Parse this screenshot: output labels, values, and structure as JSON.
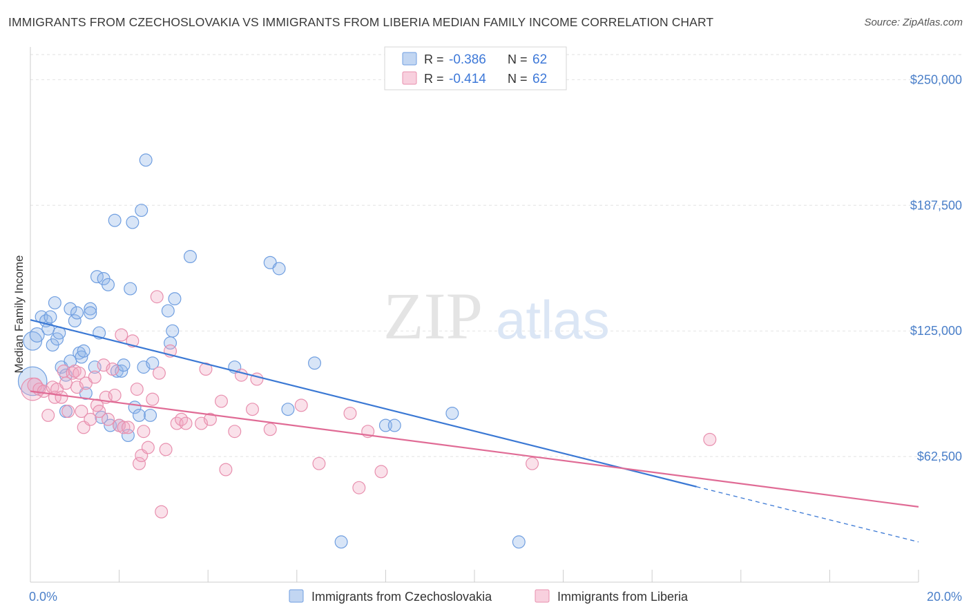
{
  "title": "IMMIGRANTS FROM CZECHOSLOVAKIA VS IMMIGRANTS FROM LIBERIA MEDIAN FAMILY INCOME CORRELATION CHART",
  "source": "Source: ZipAtlas.com",
  "watermark": {
    "zip": "ZIP",
    "atlas": "atlas"
  },
  "legend": {
    "rows": [
      {
        "r_label": "R =",
        "r_value": "-0.386",
        "n_label": "N =",
        "n_value": "62",
        "color": "#8fb4e8"
      },
      {
        "r_label": "R =",
        "r_value": "-0.414",
        "n_label": "N =",
        "n_value": "62",
        "color": "#f2a9c2"
      }
    ]
  },
  "chart_data": {
    "type": "scatter",
    "title": "IMMIGRANTS FROM CZECHOSLOVAKIA VS IMMIGRANTS FROM LIBERIA MEDIAN FAMILY INCOME CORRELATION CHART",
    "xlabel": "",
    "ylabel": "Median Family Income",
    "xlim": [
      0,
      20
    ],
    "ylim": [
      0,
      262500
    ],
    "x_tick_labels": [
      "0.0%",
      "20.0%"
    ],
    "y_ticks": [
      62500,
      125000,
      187500,
      250000
    ],
    "y_tick_labels": [
      "$62,500",
      "$125,000",
      "$187,500",
      "$250,000"
    ],
    "grid": true,
    "series": [
      {
        "name": "Immigrants from Czechoslovakia",
        "color": "#8fb4e8",
        "line_color": "#3a78d4",
        "trend": {
          "x0": 0,
          "y0": 130500,
          "x1": 15,
          "y1": 47500,
          "x_dash_end": 20,
          "y_dash_end": 20000
        },
        "points": [
          [
            0.05,
            100000,
            28
          ],
          [
            0.05,
            120000,
            18
          ],
          [
            0.15,
            123000,
            14
          ],
          [
            0.25,
            132000,
            12
          ],
          [
            0.35,
            130000,
            12
          ],
          [
            0.4,
            126000,
            12
          ],
          [
            0.45,
            132000,
            12
          ],
          [
            0.5,
            118000,
            12
          ],
          [
            0.55,
            139000,
            12
          ],
          [
            0.6,
            121000,
            12
          ],
          [
            0.65,
            124000,
            12
          ],
          [
            0.7,
            107000,
            12
          ],
          [
            0.8,
            103000,
            12
          ],
          [
            0.8,
            85000,
            12
          ],
          [
            0.9,
            136000,
            12
          ],
          [
            0.9,
            110000,
            12
          ],
          [
            1.0,
            130000,
            12
          ],
          [
            1.05,
            134000,
            12
          ],
          [
            1.1,
            114000,
            12
          ],
          [
            1.15,
            112000,
            12
          ],
          [
            1.2,
            115000,
            12
          ],
          [
            1.25,
            94000,
            12
          ],
          [
            1.35,
            136000,
            12
          ],
          [
            1.35,
            134000,
            12
          ],
          [
            1.45,
            107000,
            12
          ],
          [
            1.5,
            152000,
            12
          ],
          [
            1.55,
            124000,
            12
          ],
          [
            1.6,
            82000,
            12
          ],
          [
            1.65,
            151000,
            12
          ],
          [
            1.75,
            148000,
            12
          ],
          [
            1.8,
            78000,
            12
          ],
          [
            1.9,
            180000,
            12
          ],
          [
            1.95,
            105000,
            12
          ],
          [
            2.0,
            78000,
            12
          ],
          [
            2.05,
            105000,
            12
          ],
          [
            2.1,
            108000,
            12
          ],
          [
            2.2,
            73000,
            12
          ],
          [
            2.25,
            146000,
            12
          ],
          [
            2.3,
            179000,
            12
          ],
          [
            2.35,
            87000,
            12
          ],
          [
            2.45,
            83000,
            12
          ],
          [
            2.5,
            185000,
            12
          ],
          [
            2.55,
            107000,
            12
          ],
          [
            2.6,
            210000,
            12
          ],
          [
            2.7,
            83000,
            12
          ],
          [
            2.75,
            109000,
            12
          ],
          [
            3.1,
            135000,
            12
          ],
          [
            3.15,
            119000,
            12
          ],
          [
            3.2,
            125000,
            12
          ],
          [
            3.25,
            141000,
            12
          ],
          [
            3.6,
            162000,
            12
          ],
          [
            4.6,
            107000,
            12
          ],
          [
            5.4,
            159000,
            12
          ],
          [
            5.6,
            156000,
            12
          ],
          [
            5.8,
            86000,
            12
          ],
          [
            6.4,
            109000,
            12
          ],
          [
            7.0,
            20000,
            12
          ],
          [
            8.0,
            78000,
            12
          ],
          [
            8.2,
            78000,
            12
          ],
          [
            9.5,
            84000,
            12
          ],
          [
            11.0,
            20000,
            12
          ]
        ]
      },
      {
        "name": "Immigrants from Liberia",
        "color": "#f2a9c2",
        "line_color": "#e06b95",
        "trend": {
          "x0": 0,
          "y0": 95000,
          "x1": 20,
          "y1": 37500
        },
        "points": [
          [
            0.05,
            96000,
            22
          ],
          [
            0.1,
            98000,
            14
          ],
          [
            0.2,
            96000,
            12
          ],
          [
            0.3,
            95000,
            12
          ],
          [
            0.4,
            83000,
            12
          ],
          [
            0.5,
            97000,
            12
          ],
          [
            0.55,
            92000,
            12
          ],
          [
            0.6,
            96000,
            12
          ],
          [
            0.7,
            92000,
            12
          ],
          [
            0.75,
            105000,
            12
          ],
          [
            0.8,
            99000,
            12
          ],
          [
            0.85,
            85000,
            12
          ],
          [
            0.95,
            104000,
            12
          ],
          [
            1.0,
            105000,
            12
          ],
          [
            1.05,
            97000,
            12
          ],
          [
            1.1,
            104000,
            12
          ],
          [
            1.15,
            85000,
            12
          ],
          [
            1.2,
            77000,
            12
          ],
          [
            1.25,
            99000,
            12
          ],
          [
            1.35,
            81000,
            12
          ],
          [
            1.45,
            102000,
            12
          ],
          [
            1.5,
            88000,
            12
          ],
          [
            1.55,
            85000,
            12
          ],
          [
            1.65,
            108000,
            12
          ],
          [
            1.7,
            92000,
            12
          ],
          [
            1.75,
            81000,
            12
          ],
          [
            1.85,
            106000,
            12
          ],
          [
            1.9,
            93000,
            12
          ],
          [
            2.0,
            78000,
            12
          ],
          [
            2.05,
            123000,
            12
          ],
          [
            2.1,
            77000,
            12
          ],
          [
            2.2,
            77000,
            12
          ],
          [
            2.3,
            120000,
            12
          ],
          [
            2.4,
            96000,
            12
          ],
          [
            2.45,
            59000,
            12
          ],
          [
            2.5,
            63000,
            12
          ],
          [
            2.55,
            75000,
            12
          ],
          [
            2.65,
            67000,
            12
          ],
          [
            2.75,
            91000,
            12
          ],
          [
            2.85,
            142000,
            12
          ],
          [
            2.9,
            104000,
            12
          ],
          [
            2.95,
            35000,
            12
          ],
          [
            3.05,
            66000,
            12
          ],
          [
            3.15,
            115000,
            12
          ],
          [
            3.3,
            79000,
            12
          ],
          [
            3.4,
            81000,
            12
          ],
          [
            3.5,
            79000,
            12
          ],
          [
            3.85,
            79000,
            12
          ],
          [
            3.95,
            106000,
            12
          ],
          [
            4.05,
            81000,
            12
          ],
          [
            4.3,
            90000,
            12
          ],
          [
            4.4,
            56000,
            12
          ],
          [
            4.6,
            75000,
            12
          ],
          [
            4.75,
            103000,
            12
          ],
          [
            5.0,
            86000,
            12
          ],
          [
            5.1,
            101000,
            12
          ],
          [
            5.4,
            76000,
            12
          ],
          [
            6.1,
            88000,
            12
          ],
          [
            6.5,
            59000,
            12
          ],
          [
            7.2,
            84000,
            12
          ],
          [
            7.4,
            47000,
            12
          ],
          [
            7.6,
            75000,
            12
          ],
          [
            7.9,
            55000,
            12
          ],
          [
            11.3,
            59000,
            12
          ],
          [
            15.3,
            71000,
            12
          ]
        ]
      }
    ]
  }
}
